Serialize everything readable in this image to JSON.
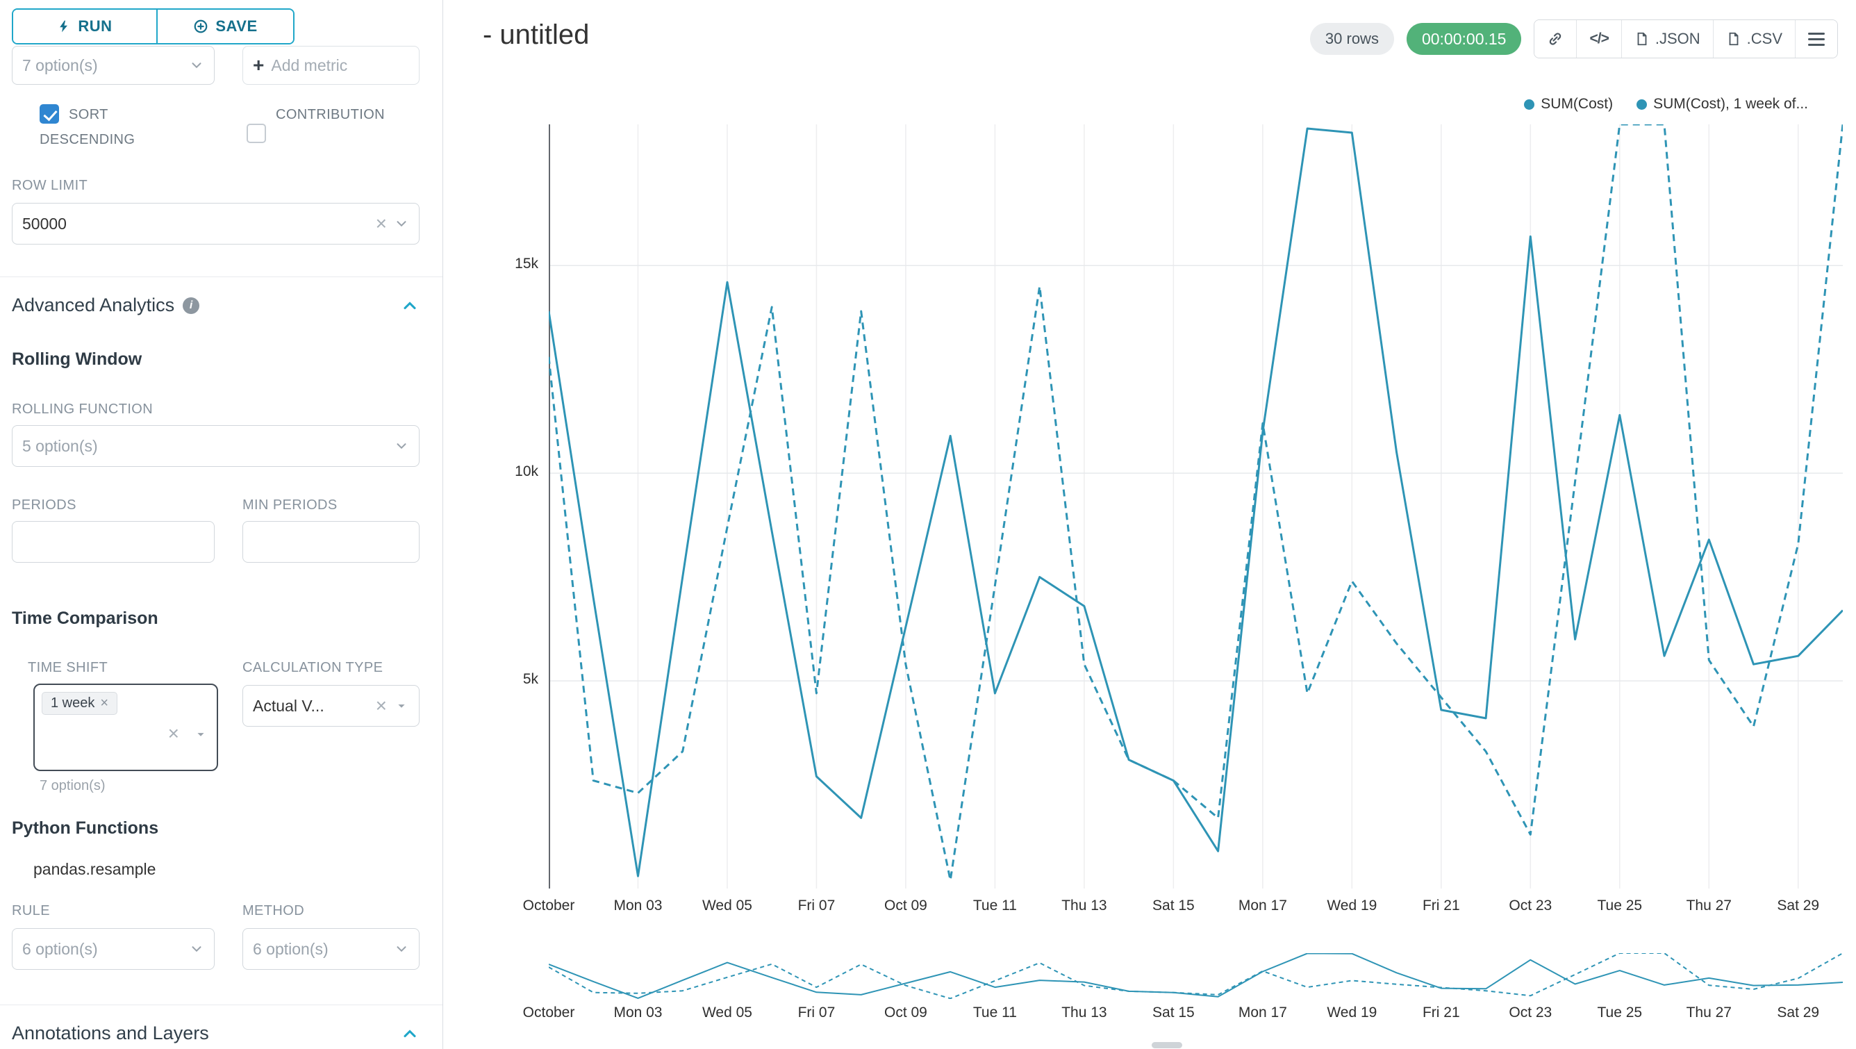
{
  "colors": {
    "accent": "#20A7C9",
    "series": "#2E94B5",
    "success_green": "#52B279",
    "checkbox_blue": "#2F86D1"
  },
  "icons": {
    "add_plus": "+",
    "clear_x": "×",
    "tag_remove_x": "×",
    "info_i": "i"
  },
  "sidebar": {
    "run_label": "RUN",
    "save_label": "SAVE",
    "metrics_value": "7 option(s)",
    "add_metric_label": "Add metric",
    "sort_label_line1": "SORT",
    "sort_label_line2": "DESCENDING",
    "contribution_label": "CONTRIBUTION",
    "row_limit_label": "ROW LIMIT",
    "row_limit_value": "50000",
    "advanced_analytics_title": "Advanced Analytics",
    "rolling_window_title": "Rolling Window",
    "rolling_function_label": "ROLLING FUNCTION",
    "rolling_function_value": "5 option(s)",
    "periods_label": "PERIODS",
    "min_periods_label": "MIN PERIODS",
    "time_comparison_title": "Time Comparison",
    "time_shift_label": "TIME SHIFT",
    "time_shift_tag": "1 week",
    "time_shift_helper": "7 option(s)",
    "calculation_type_label": "CALCULATION TYPE",
    "calculation_type_value": "Actual V...",
    "python_functions_title": "Python Functions",
    "python_function_name": "pandas.resample",
    "rule_label": "RULE",
    "rule_value": "6 option(s)",
    "method_label": "METHOD",
    "method_value": "6 option(s)",
    "annotations_title": "Annotations and Layers"
  },
  "header": {
    "title": "- untitled",
    "rows_badge": "30 rows",
    "timer": "00:00:00.15",
    "code_label": "</>",
    "json_label": ".JSON",
    "csv_label": ".CSV"
  },
  "chart_data": {
    "type": "line",
    "title": "- untitled",
    "x_days": 30,
    "x_tick_labels": [
      "October",
      "Mon 03",
      "Wed 05",
      "Fri 07",
      "Oct 09",
      "Tue 11",
      "Thu 13",
      "Sat 15",
      "Mon 17",
      "Wed 19",
      "Fri 21",
      "Oct 23",
      "Tue 25",
      "Thu 27",
      "Sat 29"
    ],
    "y_ticks": [
      {
        "label": "5k",
        "value": 5000
      },
      {
        "label": "10k",
        "value": 10000
      },
      {
        "label": "15k",
        "value": 15000
      }
    ],
    "ylim": [
      0,
      18400
    ],
    "grid": true,
    "legend_position": "top-right",
    "series": [
      {
        "name": "SUM(Cost)",
        "style": "solid",
        "color": "#2E94B5",
        "values": [
          13900,
          7000,
          300,
          7500,
          14600,
          8600,
          2700,
          1700,
          6300,
          10900,
          4700,
          7500,
          6800,
          3100,
          2600,
          900,
          11000,
          18300,
          18200,
          10500,
          4300,
          4100,
          15700,
          6000,
          11400,
          5600,
          8400,
          5400,
          5600,
          6700
        ]
      },
      {
        "name": "SUM(Cost), 1 week of...",
        "style": "dashed",
        "color": "#2E94B5",
        "values": [
          12800,
          2600,
          2300,
          3300,
          8700,
          14000,
          4700,
          13900,
          5400,
          200,
          7300,
          14500,
          5400,
          3100,
          2600,
          1700,
          11200,
          4700,
          7400,
          5900,
          4600,
          3300,
          1300,
          9800,
          18400,
          18400,
          5500,
          3900,
          8300,
          18400
        ]
      }
    ]
  }
}
